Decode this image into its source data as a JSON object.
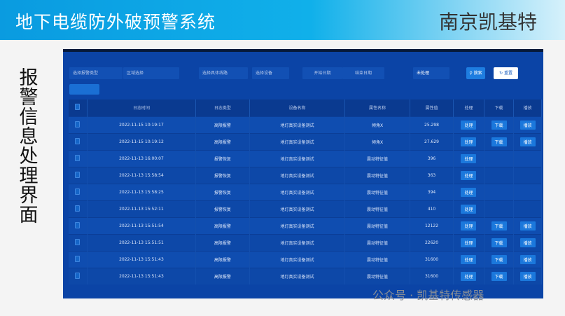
{
  "header": {
    "title": "地下电缆防外破预警系统",
    "company": "南京凯基特"
  },
  "side_title": "报警信息处理界面",
  "filters": {
    "alarm_type": "选择报警类型",
    "region": "区域选择",
    "line": "选择具体线路",
    "device": "选择设备",
    "start_date": "开始日期",
    "end_date": "结束日期",
    "status": "未处理",
    "search": "搜索",
    "reset": "重置"
  },
  "table": {
    "columns": [
      "日志时间",
      "日志类型",
      "设备名称",
      "属性名称",
      "属性值",
      "处理",
      "下载",
      "播放"
    ],
    "rows": [
      {
        "time": "2022-11-15 10:19:17",
        "type": "高限报警",
        "device": "地灯真实设备测试",
        "attr": "倾角X",
        "value": "25.298",
        "handle": "处理",
        "download": "下载",
        "play": "播放"
      },
      {
        "time": "2022-11-15 10:19:12",
        "type": "高限报警",
        "device": "地灯真实设备测试",
        "attr": "倾角X",
        "value": "27.629",
        "handle": "处理",
        "download": "下载",
        "play": "播放"
      },
      {
        "time": "2022-11-13 16:00:07",
        "type": "报警恢复",
        "device": "地灯真实设备测试",
        "attr": "震动特征值",
        "value": "396",
        "handle": "处理",
        "download": "",
        "play": ""
      },
      {
        "time": "2022-11-13 15:58:54",
        "type": "报警恢复",
        "device": "地灯真实设备测试",
        "attr": "震动特征值",
        "value": "363",
        "handle": "处理",
        "download": "",
        "play": ""
      },
      {
        "time": "2022-11-13 15:58:25",
        "type": "报警恢复",
        "device": "地灯真实设备测试",
        "attr": "震动特征值",
        "value": "394",
        "handle": "处理",
        "download": "",
        "play": ""
      },
      {
        "time": "2022-11-13 15:52:11",
        "type": "报警恢复",
        "device": "地灯真实设备测试",
        "attr": "震动特征值",
        "value": "410",
        "handle": "处理",
        "download": "",
        "play": ""
      },
      {
        "time": "2022-11-13 15:51:54",
        "type": "高限报警",
        "device": "地灯真实设备测试",
        "attr": "震动特征值",
        "value": "12122",
        "handle": "处理",
        "download": "下载",
        "play": "播放"
      },
      {
        "time": "2022-11-13 15:51:51",
        "type": "高限报警",
        "device": "地灯真实设备测试",
        "attr": "震动特征值",
        "value": "22620",
        "handle": "处理",
        "download": "下载",
        "play": "播放"
      },
      {
        "time": "2022-11-13 15:51:43",
        "type": "高限报警",
        "device": "地灯真实设备测试",
        "attr": "震动特征值",
        "value": "31600",
        "handle": "处理",
        "download": "下载",
        "play": "播放"
      },
      {
        "time": "2022-11-13 15:51:43",
        "type": "高限报警",
        "device": "地灯真实设备测试",
        "attr": "震动特征值",
        "value": "31600",
        "handle": "处理",
        "download": "下载",
        "play": "播放"
      }
    ]
  },
  "watermark": "公众号 · 凯基特传感器"
}
